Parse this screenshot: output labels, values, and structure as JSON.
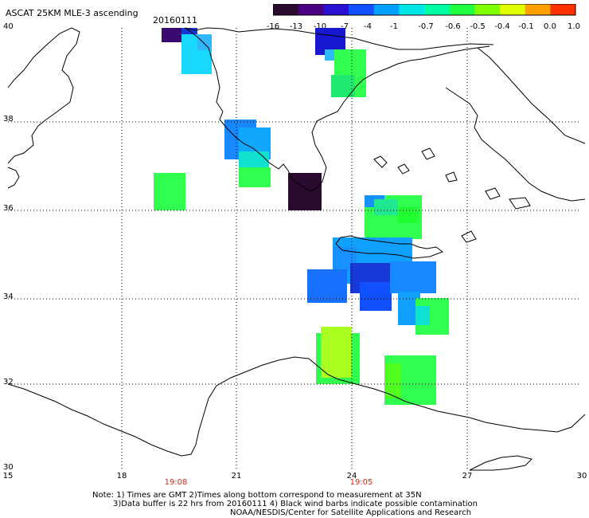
{
  "header": {
    "title": "ASCAT 25KM MLE-3 ascending",
    "date": "20160111"
  },
  "colorbar": {
    "ticks": [
      "-16",
      "-13",
      "-10",
      "-7",
      "-4",
      "-1",
      "-0.7",
      "-0.6",
      "-0.5",
      "-0.4",
      "-0.1",
      "0.0",
      "1.0"
    ],
    "colors": [
      "#2a0a2e",
      "#4a0080",
      "#2a10d0",
      "#1050ff",
      "#00a0ff",
      "#00e6e6",
      "#00ffa0",
      "#20ff40",
      "#80ff00",
      "#e0ff00",
      "#ffa000",
      "#ff3000"
    ]
  },
  "map": {
    "lat_labels": [
      "40",
      "38",
      "36",
      "34",
      "32",
      "30"
    ],
    "lon_labels": [
      "15",
      "18",
      "21",
      "24",
      "27",
      "30"
    ],
    "time_labels": [
      "19:08",
      "19:05"
    ],
    "grid_color": "#000000",
    "coast_color": "#000000"
  },
  "footer": {
    "line1": "Note: 1) Times are GMT 2)Times along bottom correspond to measurement at 35N",
    "line2": "3)Data buffer is 22 hrs from 20160111 4) Black wind barbs indicate possible contamination",
    "line3": "NOAA/NESDIS/Center for Satellite Applications and Research"
  }
}
